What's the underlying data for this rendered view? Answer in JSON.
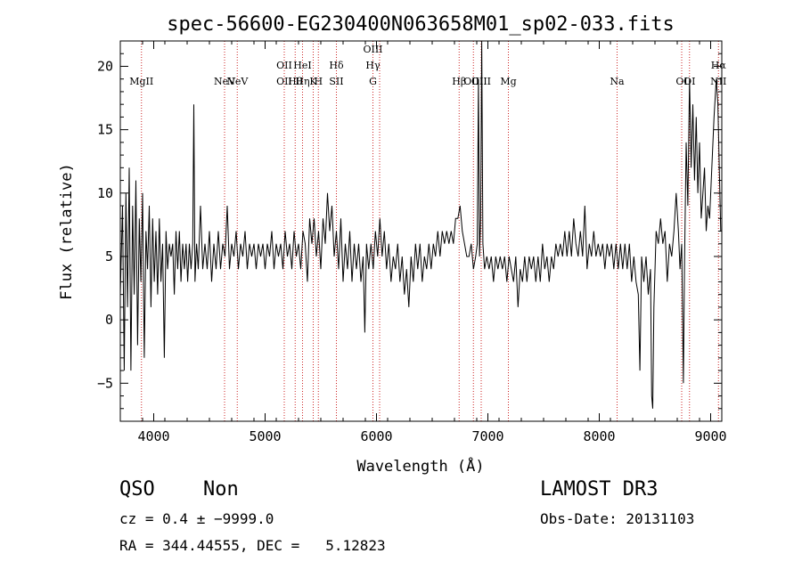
{
  "chart_data": {
    "type": "line",
    "title": "spec-56600-EG230400N063658M01_sp02-033.fits",
    "xlabel": "Wavelength (Å)",
    "ylabel": "Flux (relative)",
    "xlim": [
      3700,
      9100
    ],
    "ylim": [
      -8,
      22
    ],
    "xticks": [
      4000,
      5000,
      6000,
      7000,
      8000,
      9000
    ],
    "xtick_labels": [
      "4000",
      "5000",
      "6000",
      "7000",
      "8000",
      "9000"
    ],
    "yticks": [
      -5,
      0,
      5,
      10,
      15,
      20
    ],
    "ytick_labels": [
      "−5",
      "0",
      "5",
      "10",
      "15",
      "20"
    ],
    "series": [
      {
        "name": "spectrum",
        "points": [
          [
            3700,
            2
          ],
          [
            3720,
            9
          ],
          [
            3735,
            -4
          ],
          [
            3750,
            10
          ],
          [
            3765,
            1
          ],
          [
            3780,
            12
          ],
          [
            3795,
            -4
          ],
          [
            3810,
            9
          ],
          [
            3825,
            2
          ],
          [
            3840,
            11
          ],
          [
            3855,
            -2
          ],
          [
            3870,
            8
          ],
          [
            3885,
            3
          ],
          [
            3900,
            10
          ],
          [
            3915,
            -3
          ],
          [
            3930,
            7
          ],
          [
            3945,
            4
          ],
          [
            3960,
            9
          ],
          [
            3975,
            1
          ],
          [
            3990,
            8
          ],
          [
            4005,
            3
          ],
          [
            4020,
            7
          ],
          [
            4035,
            2
          ],
          [
            4050,
            8
          ],
          [
            4065,
            3
          ],
          [
            4080,
            6
          ],
          [
            4095,
            -3
          ],
          [
            4110,
            7
          ],
          [
            4125,
            4
          ],
          [
            4140,
            6
          ],
          [
            4155,
            5
          ],
          [
            4170,
            6
          ],
          [
            4185,
            2
          ],
          [
            4200,
            7
          ],
          [
            4215,
            4
          ],
          [
            4230,
            7
          ],
          [
            4245,
            3
          ],
          [
            4260,
            6
          ],
          [
            4275,
            4
          ],
          [
            4290,
            6
          ],
          [
            4305,
            3
          ],
          [
            4320,
            6
          ],
          [
            4335,
            4
          ],
          [
            4350,
            6
          ],
          [
            4360,
            17
          ],
          [
            4370,
            3
          ],
          [
            4385,
            6
          ],
          [
            4400,
            4
          ],
          [
            4420,
            9
          ],
          [
            4440,
            4
          ],
          [
            4460,
            6
          ],
          [
            4480,
            4
          ],
          [
            4500,
            7
          ],
          [
            4520,
            3
          ],
          [
            4540,
            6
          ],
          [
            4560,
            4
          ],
          [
            4580,
            7
          ],
          [
            4600,
            4
          ],
          [
            4620,
            6
          ],
          [
            4640,
            5
          ],
          [
            4660,
            9
          ],
          [
            4680,
            4
          ],
          [
            4700,
            6
          ],
          [
            4720,
            5
          ],
          [
            4740,
            7
          ],
          [
            4760,
            4
          ],
          [
            4780,
            6
          ],
          [
            4800,
            5
          ],
          [
            4820,
            7
          ],
          [
            4840,
            4
          ],
          [
            4860,
            6
          ],
          [
            4880,
            5
          ],
          [
            4900,
            6
          ],
          [
            4920,
            4
          ],
          [
            4940,
            6
          ],
          [
            4960,
            5
          ],
          [
            4980,
            6
          ],
          [
            5000,
            4
          ],
          [
            5020,
            6
          ],
          [
            5040,
            5
          ],
          [
            5060,
            7
          ],
          [
            5080,
            4
          ],
          [
            5100,
            6
          ],
          [
            5120,
            5
          ],
          [
            5140,
            6
          ],
          [
            5160,
            4
          ],
          [
            5180,
            7
          ],
          [
            5200,
            5
          ],
          [
            5220,
            6
          ],
          [
            5240,
            4
          ],
          [
            5260,
            7
          ],
          [
            5280,
            5
          ],
          [
            5300,
            6
          ],
          [
            5320,
            4
          ],
          [
            5340,
            7
          ],
          [
            5360,
            6
          ],
          [
            5380,
            3
          ],
          [
            5400,
            8
          ],
          [
            5420,
            6
          ],
          [
            5440,
            8
          ],
          [
            5460,
            5
          ],
          [
            5480,
            7
          ],
          [
            5500,
            4
          ],
          [
            5520,
            8
          ],
          [
            5540,
            6
          ],
          [
            5560,
            10
          ],
          [
            5580,
            7
          ],
          [
            5600,
            9
          ],
          [
            5620,
            5
          ],
          [
            5640,
            7
          ],
          [
            5660,
            4
          ],
          [
            5680,
            8
          ],
          [
            5700,
            3
          ],
          [
            5720,
            6
          ],
          [
            5740,
            4
          ],
          [
            5760,
            7
          ],
          [
            5780,
            3
          ],
          [
            5800,
            6
          ],
          [
            5820,
            4
          ],
          [
            5840,
            6
          ],
          [
            5860,
            3
          ],
          [
            5880,
            5
          ],
          [
            5895,
            -1
          ],
          [
            5910,
            6
          ],
          [
            5930,
            4
          ],
          [
            5950,
            6
          ],
          [
            5970,
            4
          ],
          [
            5990,
            7
          ],
          [
            6010,
            5
          ],
          [
            6030,
            8
          ],
          [
            6050,
            5
          ],
          [
            6070,
            7
          ],
          [
            6090,
            4
          ],
          [
            6110,
            6
          ],
          [
            6130,
            3
          ],
          [
            6150,
            5
          ],
          [
            6170,
            4
          ],
          [
            6190,
            6
          ],
          [
            6210,
            3
          ],
          [
            6230,
            5
          ],
          [
            6250,
            2
          ],
          [
            6270,
            4
          ],
          [
            6290,
            1
          ],
          [
            6310,
            5
          ],
          [
            6330,
            3
          ],
          [
            6350,
            6
          ],
          [
            6370,
            4
          ],
          [
            6390,
            6
          ],
          [
            6410,
            3
          ],
          [
            6430,
            5
          ],
          [
            6450,
            4
          ],
          [
            6470,
            6
          ],
          [
            6490,
            4
          ],
          [
            6510,
            6
          ],
          [
            6530,
            5
          ],
          [
            6550,
            7
          ],
          [
            6570,
            5
          ],
          [
            6590,
            7
          ],
          [
            6610,
            6
          ],
          [
            6630,
            7
          ],
          [
            6650,
            6
          ],
          [
            6670,
            7
          ],
          [
            6690,
            6
          ],
          [
            6710,
            8
          ],
          [
            6730,
            8
          ],
          [
            6750,
            9
          ],
          [
            6770,
            7
          ],
          [
            6790,
            6
          ],
          [
            6810,
            5
          ],
          [
            6830,
            5
          ],
          [
            6850,
            6
          ],
          [
            6870,
            4
          ],
          [
            6890,
            5
          ],
          [
            6905,
            6
          ],
          [
            6915,
            19
          ],
          [
            6925,
            5
          ],
          [
            6935,
            8
          ],
          [
            6945,
            22
          ],
          [
            6955,
            6
          ],
          [
            6970,
            4
          ],
          [
            6990,
            5
          ],
          [
            7010,
            4
          ],
          [
            7030,
            5
          ],
          [
            7050,
            3
          ],
          [
            7070,
            5
          ],
          [
            7090,
            4
          ],
          [
            7110,
            5
          ],
          [
            7130,
            4
          ],
          [
            7150,
            5
          ],
          [
            7170,
            3
          ],
          [
            7190,
            5
          ],
          [
            7210,
            4
          ],
          [
            7230,
            3
          ],
          [
            7250,
            5
          ],
          [
            7270,
            1
          ],
          [
            7290,
            4
          ],
          [
            7310,
            3
          ],
          [
            7330,
            5
          ],
          [
            7350,
            3
          ],
          [
            7370,
            5
          ],
          [
            7390,
            4
          ],
          [
            7410,
            5
          ],
          [
            7430,
            3
          ],
          [
            7450,
            5
          ],
          [
            7470,
            3
          ],
          [
            7490,
            6
          ],
          [
            7510,
            4
          ],
          [
            7530,
            5
          ],
          [
            7550,
            3
          ],
          [
            7570,
            5
          ],
          [
            7590,
            4
          ],
          [
            7610,
            6
          ],
          [
            7630,
            5
          ],
          [
            7650,
            6
          ],
          [
            7670,
            5
          ],
          [
            7690,
            7
          ],
          [
            7710,
            5
          ],
          [
            7730,
            7
          ],
          [
            7750,
            5
          ],
          [
            7770,
            8
          ],
          [
            7790,
            6
          ],
          [
            7810,
            5
          ],
          [
            7830,
            7
          ],
          [
            7850,
            5
          ],
          [
            7870,
            9
          ],
          [
            7890,
            4
          ],
          [
            7910,
            6
          ],
          [
            7930,
            5
          ],
          [
            7950,
            7
          ],
          [
            7970,
            5
          ],
          [
            7990,
            6
          ],
          [
            8010,
            5
          ],
          [
            8030,
            6
          ],
          [
            8050,
            4
          ],
          [
            8070,
            6
          ],
          [
            8090,
            5
          ],
          [
            8110,
            6
          ],
          [
            8130,
            4
          ],
          [
            8150,
            6
          ],
          [
            8170,
            4
          ],
          [
            8190,
            6
          ],
          [
            8210,
            4
          ],
          [
            8230,
            6
          ],
          [
            8250,
            4
          ],
          [
            8270,
            6
          ],
          [
            8290,
            3
          ],
          [
            8310,
            5
          ],
          [
            8330,
            3
          ],
          [
            8350,
            2
          ],
          [
            8365,
            -4
          ],
          [
            8380,
            5
          ],
          [
            8400,
            3
          ],
          [
            8420,
            5
          ],
          [
            8440,
            2
          ],
          [
            8460,
            4
          ],
          [
            8470,
            -6
          ],
          [
            8480,
            -7
          ],
          [
            8490,
            1
          ],
          [
            8510,
            7
          ],
          [
            8530,
            6
          ],
          [
            8550,
            8
          ],
          [
            8570,
            6
          ],
          [
            8590,
            7
          ],
          [
            8610,
            3
          ],
          [
            8630,
            6
          ],
          [
            8650,
            5
          ],
          [
            8670,
            7
          ],
          [
            8690,
            10
          ],
          [
            8710,
            7
          ],
          [
            8725,
            4
          ],
          [
            8740,
            6
          ],
          [
            8755,
            -5
          ],
          [
            8765,
            4
          ],
          [
            8780,
            14
          ],
          [
            8795,
            9
          ],
          [
            8810,
            19
          ],
          [
            8825,
            12
          ],
          [
            8840,
            17
          ],
          [
            8855,
            11
          ],
          [
            8870,
            16
          ],
          [
            8885,
            10
          ],
          [
            8900,
            14
          ],
          [
            8915,
            8
          ],
          [
            8930,
            10
          ],
          [
            8945,
            12
          ],
          [
            8960,
            7
          ],
          [
            8975,
            9
          ],
          [
            8990,
            8
          ],
          [
            9010,
            12
          ],
          [
            9030,
            16
          ],
          [
            9050,
            19
          ],
          [
            9065,
            17
          ],
          [
            9080,
            11
          ],
          [
            9090,
            7
          ]
        ]
      }
    ],
    "reference_lines": [
      {
        "wavelength": 3890,
        "labels": [
          "MgII"
        ]
      },
      {
        "wavelength": 4636,
        "labels": [
          "NeV"
        ]
      },
      {
        "wavelength": 4750,
        "labels": [
          "NeV"
        ]
      },
      {
        "wavelength": 5172,
        "labels": [
          "OII",
          "OII"
        ]
      },
      {
        "wavelength": 5270,
        "labels": [
          "Hθ"
        ]
      },
      {
        "wavelength": 5336,
        "labels": [
          "HeI",
          "Hη"
        ]
      },
      {
        "wavelength": 5432,
        "labels": [
          "K"
        ]
      },
      {
        "wavelength": 5478,
        "labels": [
          "H"
        ]
      },
      {
        "wavelength": 5640,
        "labels": [
          "Hδ",
          "SII"
        ]
      },
      {
        "wavelength": 5968,
        "labels": [
          "OIII",
          "Hγ",
          "G"
        ]
      },
      {
        "wavelength": 6028,
        "labels": []
      },
      {
        "wavelength": 6742,
        "labels": [
          "Hβ"
        ]
      },
      {
        "wavelength": 6870,
        "labels": [
          "OIII"
        ]
      },
      {
        "wavelength": 6940,
        "labels": [
          "OIII"
        ]
      },
      {
        "wavelength": 7184,
        "labels": [
          "Mg"
        ]
      },
      {
        "wavelength": 8160,
        "labels": [
          "Na"
        ]
      },
      {
        "wavelength": 8740,
        "labels": [
          "OI"
        ]
      },
      {
        "wavelength": 8810,
        "labels": [
          "OI"
        ]
      },
      {
        "wavelength": 9070,
        "labels": [
          "Hα",
          "NII"
        ]
      }
    ]
  },
  "info": {
    "object_class": "QSO",
    "subclass": "Non",
    "survey": "LAMOST DR3",
    "redshift": "cz = 0.4 ± −9999.0",
    "obs_date": "Obs-Date: 20131103",
    "coords": "RA = 344.44555, DEC =   5.12823"
  }
}
